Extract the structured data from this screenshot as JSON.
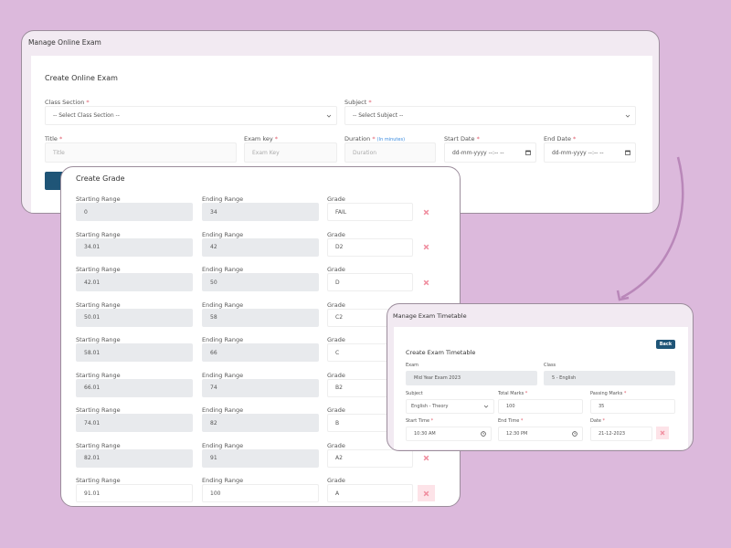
{
  "online_exam": {
    "window_title": "Manage Online Exam",
    "heading": "Create Online Exam",
    "class_section": {
      "label": "Class Section",
      "value": "-- Select Class Section --"
    },
    "subject": {
      "label": "Subject",
      "value": "-- Select Subject --"
    },
    "title": {
      "label": "Title",
      "placeholder": "Title"
    },
    "exam_key": {
      "label": "Exam key",
      "placeholder": "Exam Key"
    },
    "duration": {
      "label": "Duration",
      "hint": "(In minutes)",
      "placeholder": "Duration"
    },
    "start_date": {
      "label": "Start Date",
      "placeholder": "dd-mm-yyyy --:-- --"
    },
    "end_date": {
      "label": "End Date",
      "placeholder": "dd-mm-yyyy --:-- --"
    }
  },
  "grade": {
    "heading": "Create Grade",
    "start_label": "Starting Range",
    "end_label": "Ending Range",
    "grade_label": "Grade",
    "rows": [
      {
        "start": "0",
        "end": "34",
        "grade": "FAIL"
      },
      {
        "start": "34.01",
        "end": "42",
        "grade": "D2"
      },
      {
        "start": "42.01",
        "end": "50",
        "grade": "D"
      },
      {
        "start": "50.01",
        "end": "58",
        "grade": "C2"
      },
      {
        "start": "58.01",
        "end": "66",
        "grade": "C"
      },
      {
        "start": "66.01",
        "end": "74",
        "grade": "B2"
      },
      {
        "start": "74.01",
        "end": "82",
        "grade": "B"
      },
      {
        "start": "82.01",
        "end": "91",
        "grade": "A2"
      },
      {
        "start": "91.01",
        "end": "100",
        "grade": "A"
      }
    ]
  },
  "timetable": {
    "window_title": "Manage Exam Timetable",
    "heading": "Create Exam Timetable",
    "back_label": "Back",
    "exam": {
      "label": "Exam",
      "value": "Mid Year Exam 2023"
    },
    "class": {
      "label": "Class",
      "value": "5 - English"
    },
    "subject": {
      "label": "Subject",
      "value": "English - Theory"
    },
    "total_marks": {
      "label": "Total Marks",
      "value": "100"
    },
    "passing_marks": {
      "label": "Passing Marks",
      "value": "35"
    },
    "start_time": {
      "label": "Start Time",
      "value": "10:30 AM"
    },
    "end_time": {
      "label": "End Time",
      "value": "12:30 PM"
    },
    "date": {
      "label": "Date",
      "value": "21-12-2023"
    }
  },
  "colors": {
    "background": "#dcb9dc",
    "primary": "#1f5577",
    "required": "#e05a6a",
    "delete": "#f08fa0"
  }
}
